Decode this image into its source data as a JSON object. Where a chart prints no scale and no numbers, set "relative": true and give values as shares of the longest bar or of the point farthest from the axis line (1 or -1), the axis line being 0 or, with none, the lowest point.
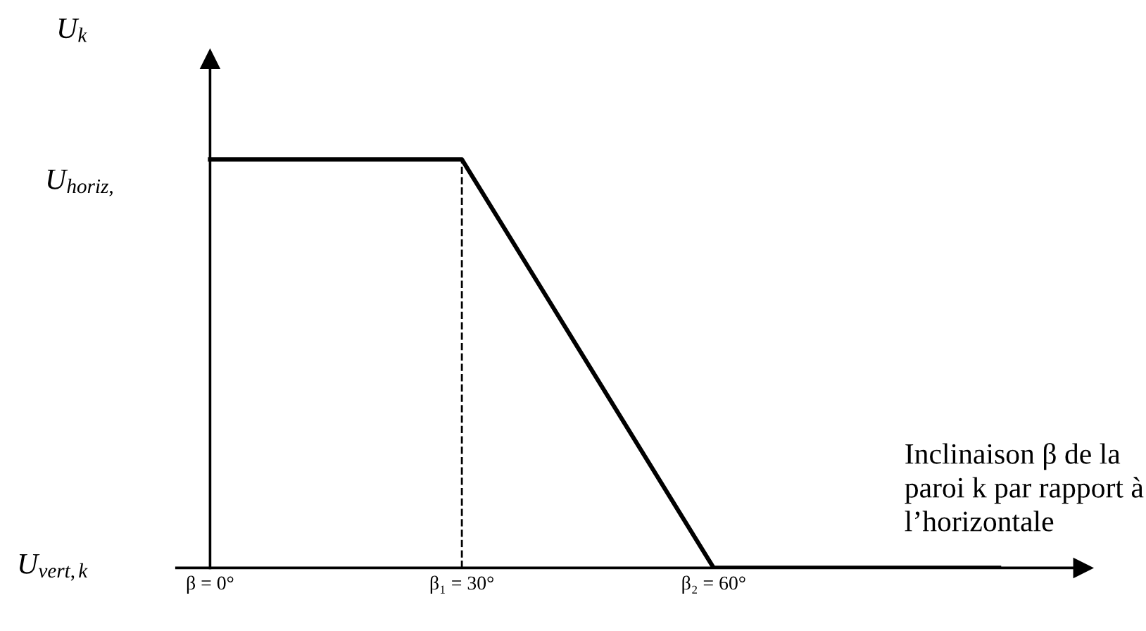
{
  "chart_data": {
    "type": "line",
    "x": [
      0,
      30,
      60,
      94
    ],
    "series": [
      {
        "color": "#000000",
        "values": [
          1,
          1,
          0,
          0
        ]
      }
    ],
    "relative": true,
    "xlim": [
      -4,
      104
    ],
    "xticks": [
      {
        "value": 0,
        "label": "β = 0°"
      },
      {
        "value": 30,
        "label": "β₁ = 30°"
      },
      {
        "value": 60,
        "label": "β₂ = 60°"
      }
    ],
    "annotations": [
      "U$_{k}$",
      "U$_{horiz,}$",
      "U$_{vert,k}$"
    ],
    "xlabel": "Inclinaison β de la\nparoi k par rapport à\nl’horizontale",
    "ref_lines": [
      {
        "axis": "x",
        "value": 30,
        "line_style": "dashed",
        "color": "#000000"
      }
    ],
    "grid": false,
    "legend": false,
    "marker": "none",
    "line_style": "solid"
  }
}
